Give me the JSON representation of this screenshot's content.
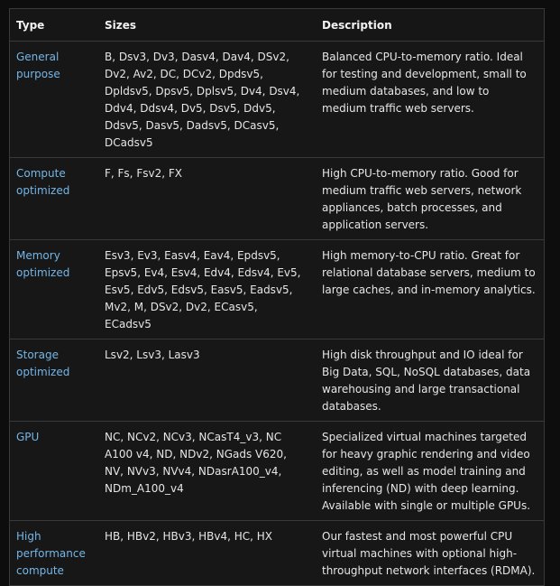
{
  "headers": {
    "type": "Type",
    "sizes": "Sizes",
    "description": "Description"
  },
  "rows": [
    {
      "type": "General purpose",
      "sizes": "B, Dsv3, Dv3, Dasv4, Dav4, DSv2, Dv2, Av2, DC, DCv2, Dpdsv5, Dpldsv5, Dpsv5, Dplsv5, Dv4, Dsv4, Ddv4, Ddsv4, Dv5, Dsv5, Ddv5, Ddsv5, Dasv5, Dadsv5, DCasv5, DCadsv5",
      "description": "Balanced CPU-to-memory ratio. Ideal for testing and development, small to medium databases, and low to medium traffic web servers."
    },
    {
      "type": "Compute optimized",
      "sizes": "F, Fs, Fsv2, FX",
      "description": "High CPU-to-memory ratio. Good for medium traffic web servers, network appliances, batch processes, and application servers."
    },
    {
      "type": "Memory optimized",
      "sizes": "Esv3, Ev3, Easv4, Eav4, Epdsv5, Epsv5, Ev4, Esv4, Edv4, Edsv4, Ev5, Esv5, Edv5, Edsv5, Easv5, Eadsv5, Mv2, M, DSv2, Dv2, ECasv5, ECadsv5",
      "description": "High memory-to-CPU ratio. Great for relational database servers, medium to large caches, and in-memory analytics."
    },
    {
      "type": "Storage optimized",
      "sizes": "Lsv2, Lsv3, Lasv3",
      "description": "High disk throughput and IO ideal for Big Data, SQL, NoSQL databases, data warehousing and large transactional databases."
    },
    {
      "type": "GPU",
      "sizes": "NC, NCv2, NCv3, NCasT4_v3, NC A100 v4, ND, NDv2, NGads V620, NV, NVv3, NVv4, NDasrA100_v4, NDm_A100_v4",
      "description": "Specialized virtual machines targeted for heavy graphic rendering and video editing, as well as model training and inferencing (ND) with deep learning. Available with single or multiple GPUs."
    },
    {
      "type": "High performance compute",
      "sizes": "HB, HBv2, HBv3, HBv4, HC, HX",
      "description": "Our fastest and most powerful CPU virtual machines with optional high-throughput network interfaces (RDMA)."
    }
  ]
}
